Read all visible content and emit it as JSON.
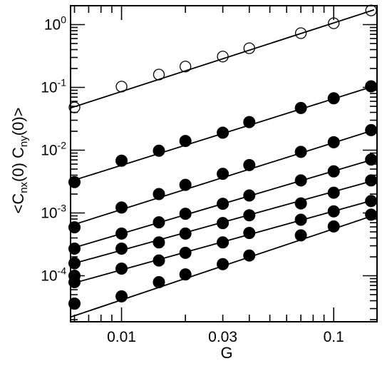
{
  "chart_data": {
    "type": "scatter",
    "xscale": "log",
    "yscale": "log",
    "xlim": [
      0.00575,
      0.16
    ],
    "ylim": [
      1.85e-05,
      2.0
    ],
    "xlabel": "G",
    "ylabel": {
      "prefix": "<C",
      "sub1": "nx",
      "mid": "(0) C",
      "sub2": "ny",
      "suffix": "(0)>"
    },
    "x_ticks": [
      {
        "value": 0.01,
        "label": "0.01"
      },
      {
        "value": 0.03,
        "label": "0.03"
      },
      {
        "value": 0.1,
        "label": "0.1"
      }
    ],
    "y_ticks": [
      {
        "exp": 0,
        "base": "10",
        "sup": "0"
      },
      {
        "exp": -1,
        "base": "10",
        "sup": "-1"
      },
      {
        "exp": -2,
        "base": "10",
        "sup": "-2"
      },
      {
        "exp": -3,
        "base": "10",
        "sup": "-3"
      },
      {
        "exp": -4,
        "base": "10",
        "sup": "-4"
      }
    ],
    "grid": false,
    "series": [
      {
        "marker": "open-circle",
        "x": [
          0.006,
          0.01,
          0.015,
          0.02,
          0.03,
          0.04,
          0.07,
          0.1,
          0.15
        ],
        "y": [
          0.048,
          0.103,
          0.16,
          0.215,
          0.31,
          0.42,
          0.73,
          1.05,
          1.68
        ],
        "fit": {
          "x": [
            0.00575,
            0.155
          ],
          "y": [
            0.047,
            1.72
          ]
        }
      },
      {
        "marker": "filled-circle",
        "x": [
          0.006,
          0.01,
          0.015,
          0.02,
          0.03,
          0.04,
          0.07,
          0.1,
          0.15
        ],
        "y": [
          0.0031,
          0.0068,
          0.0098,
          0.014,
          0.019,
          0.028,
          0.047,
          0.067,
          0.104
        ],
        "fit": {
          "x": [
            0.00575,
            0.155
          ],
          "y": [
            0.0032,
            0.105
          ]
        }
      },
      {
        "marker": "filled-circle",
        "x": [
          0.006,
          0.01,
          0.015,
          0.02,
          0.03,
          0.04,
          0.07,
          0.1,
          0.15
        ],
        "y": [
          0.00059,
          0.00122,
          0.002,
          0.0028,
          0.0042,
          0.0058,
          0.0094,
          0.0134,
          0.0209
        ],
        "fit": {
          "x": [
            0.00575,
            0.155
          ],
          "y": [
            0.00063,
            0.021
          ]
        }
      },
      {
        "marker": "filled-circle",
        "x": [
          0.006,
          0.01,
          0.015,
          0.02,
          0.03,
          0.04,
          0.07,
          0.1,
          0.15
        ],
        "y": [
          0.00027,
          0.00047,
          0.00071,
          0.00097,
          0.0014,
          0.0019,
          0.0033,
          0.0046,
          0.0071
        ],
        "fit": {
          "x": [
            0.00575,
            0.155
          ],
          "y": [
            0.00027,
            0.0072
          ]
        }
      },
      {
        "marker": "filled-circle",
        "x": [
          0.006,
          0.01,
          0.015,
          0.02,
          0.03,
          0.04,
          0.07,
          0.1,
          0.15
        ],
        "y": [
          0.000158,
          0.00027,
          0.00034,
          0.00047,
          0.00069,
          0.00092,
          0.00142,
          0.0021,
          0.0033
        ],
        "fit": {
          "x": [
            0.00575,
            0.155
          ],
          "y": [
            0.000152,
            0.0033
          ]
        }
      },
      {
        "marker": "filled-circle",
        "x": [
          0.006,
          0.01,
          0.015,
          0.02,
          0.03,
          0.04,
          0.07,
          0.1,
          0.15
        ],
        "y": [
          0.0001,
          0.00013,
          0.000175,
          0.000232,
          0.00034,
          0.00048,
          0.00078,
          0.00106,
          0.00155
        ],
        "fit": {
          "x": [
            0.00575,
            0.155
          ],
          "y": [
            7.4e-05,
            0.00161
          ]
        }
      },
      {
        "marker": "filled-circle",
        "x": [
          0.006,
          0.01,
          0.015,
          0.02,
          0.03,
          0.04,
          0.07,
          0.1,
          0.15
        ],
        "y": [
          7.9e-05,
          4.7e-05,
          7.9e-05,
          0.000105,
          0.000153,
          0.00021,
          0.00044,
          0.00061,
          0.00094
        ],
        "fit": {
          "x": [
            0.00575,
            0.155
          ],
          "y": [
            2.2e-05,
            0.00092
          ]
        }
      },
      {
        "marker": "filled-circle",
        "x": [
          0.006
        ],
        "y": [
          3.6e-05
        ],
        "fit": null
      }
    ]
  }
}
